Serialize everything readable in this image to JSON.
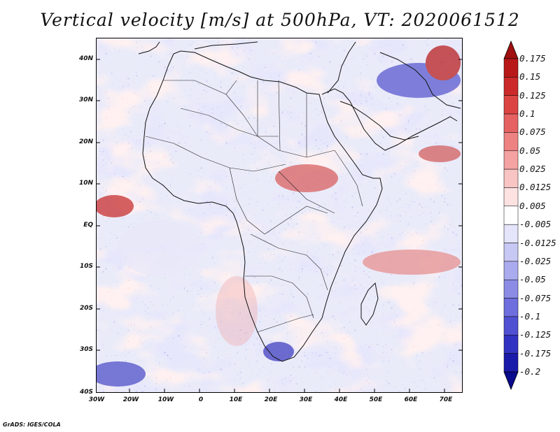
{
  "title": "Vertical velocity [m/s] at 500hPa, VT: 2020061512",
  "lat_labels": [
    "40N",
    "30N",
    "20N",
    "10N",
    "EQ",
    "10S",
    "20S",
    "30S",
    "40S"
  ],
  "lon_labels": [
    "30W",
    "20W",
    "10W",
    "0",
    "10E",
    "20E",
    "30E",
    "40E",
    "50E",
    "60E",
    "70E"
  ],
  "colorbar": {
    "labels": [
      "0.175",
      "0.15",
      "0.125",
      "0.1",
      "0.075",
      "0.05",
      "0.025",
      "0.0125",
      "0.005",
      "-0.005",
      "-0.0125",
      "-0.025",
      "-0.05",
      "-0.075",
      "-0.1",
      "-0.125",
      "-0.175",
      "-0.2"
    ],
    "colors": [
      "#a01010",
      "#b81818",
      "#cc2a2a",
      "#dc4444",
      "#e66262",
      "#ee8282",
      "#f4a2a2",
      "#f9c4c4",
      "#fde2e2",
      "#ffffff",
      "#e4e4fa",
      "#c8c8f4",
      "#aaaaee",
      "#8c8ce6",
      "#6e6ede",
      "#5050d2",
      "#3232c2",
      "#1a1aaa",
      "#0a0a8c"
    ]
  },
  "footer": "GrADS: IGES/COLA"
}
